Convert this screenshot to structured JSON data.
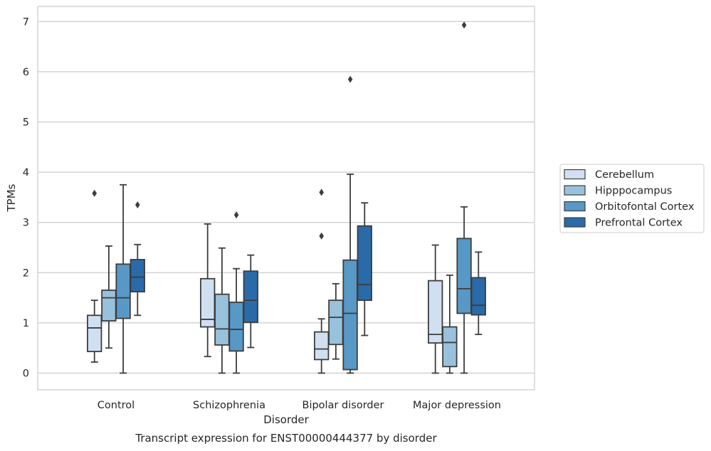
{
  "chart_data": {
    "type": "boxplot",
    "title": "Transcript expression for ENST00000444377 by disorder",
    "xlabel": "Disorder",
    "ylabel": "TPMs",
    "ylim": [
      -0.33,
      7.3
    ],
    "yticks": [
      "0",
      "1",
      "2",
      "3",
      "4",
      "5",
      "6",
      "7"
    ],
    "grid": true,
    "legend_position": "right",
    "categories": [
      "Control",
      "Schizophrenia",
      "Bipolar disorder",
      "Major depression"
    ],
    "series": [
      {
        "name": "Cerebellum",
        "color": "#d0e0f1",
        "boxes": [
          {
            "q1": 0.43,
            "median": 0.9,
            "q3": 1.15,
            "whisker_low": 0.22,
            "whisker_high": 1.45,
            "outliers": [
              3.58
            ]
          },
          {
            "q1": 0.92,
            "median": 1.07,
            "q3": 1.88,
            "whisker_low": 0.33,
            "whisker_high": 2.97,
            "outliers": []
          },
          {
            "q1": 0.27,
            "median": 0.48,
            "q3": 0.82,
            "whisker_low": 0.0,
            "whisker_high": 1.08,
            "outliers": [
              3.6,
              2.73
            ]
          },
          {
            "q1": 0.6,
            "median": 0.77,
            "q3": 1.84,
            "whisker_low": 0.0,
            "whisker_high": 2.55,
            "outliers": []
          }
        ]
      },
      {
        "name": "Hipppocampus",
        "color": "#98c1dc",
        "boxes": [
          {
            "q1": 1.04,
            "median": 1.5,
            "q3": 1.65,
            "whisker_low": 0.5,
            "whisker_high": 2.53,
            "outliers": []
          },
          {
            "q1": 0.56,
            "median": 0.88,
            "q3": 1.57,
            "whisker_low": 0.0,
            "whisker_high": 2.49,
            "outliers": []
          },
          {
            "q1": 0.57,
            "median": 1.11,
            "q3": 1.45,
            "whisker_low": 0.28,
            "whisker_high": 1.78,
            "outliers": []
          },
          {
            "q1": 0.13,
            "median": 0.61,
            "q3": 0.92,
            "whisker_low": 0.0,
            "whisker_high": 1.95,
            "outliers": []
          }
        ]
      },
      {
        "name": "Orbitofontal Cortex",
        "color": "#5898c7",
        "boxes": [
          {
            "q1": 1.09,
            "median": 1.5,
            "q3": 2.17,
            "whisker_low": 0.0,
            "whisker_high": 3.75,
            "outliers": []
          },
          {
            "q1": 0.44,
            "median": 0.87,
            "q3": 1.41,
            "whisker_low": 0.0,
            "whisker_high": 2.08,
            "outliers": [
              3.15
            ]
          },
          {
            "q1": 0.07,
            "median": 1.19,
            "q3": 2.25,
            "whisker_low": 0.0,
            "whisker_high": 3.96,
            "outliers": [
              5.85
            ]
          },
          {
            "q1": 1.19,
            "median": 1.68,
            "q3": 2.68,
            "whisker_low": 0.0,
            "whisker_high": 3.31,
            "outliers": [
              6.93
            ]
          }
        ]
      },
      {
        "name": "Prefrontal Cortex",
        "color": "#2b6aa8",
        "boxes": [
          {
            "q1": 1.62,
            "median": 1.91,
            "q3": 2.26,
            "whisker_low": 1.15,
            "whisker_high": 2.56,
            "outliers": [
              3.35
            ]
          },
          {
            "q1": 1.01,
            "median": 1.45,
            "q3": 2.03,
            "whisker_low": 0.51,
            "whisker_high": 2.35,
            "outliers": []
          },
          {
            "q1": 1.45,
            "median": 1.76,
            "q3": 2.93,
            "whisker_low": 0.75,
            "whisker_high": 3.39,
            "outliers": []
          },
          {
            "q1": 1.16,
            "median": 1.35,
            "q3": 1.9,
            "whisker_low": 0.77,
            "whisker_high": 2.41,
            "outliers": []
          }
        ]
      }
    ]
  }
}
